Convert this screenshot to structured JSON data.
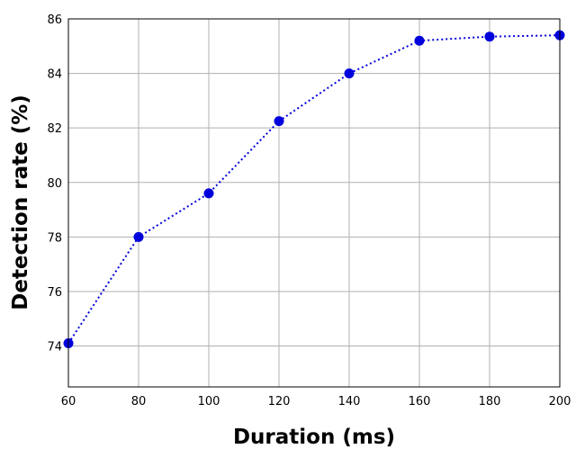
{
  "chart_data": {
    "type": "line",
    "title": "",
    "xlabel": "Duration (ms)",
    "ylabel": "Detection rate (%)",
    "x": [
      60,
      80,
      100,
      120,
      140,
      160,
      180,
      200
    ],
    "series": [
      {
        "values": [
          74.1,
          78.0,
          79.6,
          82.25,
          84.0,
          85.2,
          85.35,
          85.4
        ],
        "color": "#0000dd",
        "line_style": "dotted",
        "marker": "circle"
      }
    ],
    "xlim": [
      60,
      200
    ],
    "ylim": [
      72.5,
      86
    ],
    "xticks": [
      60,
      80,
      100,
      120,
      140,
      160,
      180,
      200
    ],
    "yticks": [
      74,
      76,
      78,
      80,
      82,
      84,
      86
    ],
    "grid": true,
    "legend": "none"
  }
}
